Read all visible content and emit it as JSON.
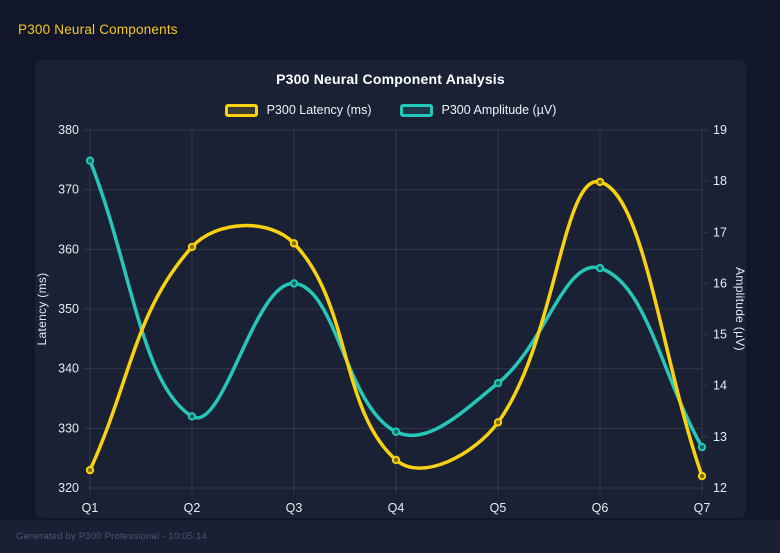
{
  "header": {
    "title": "P300 Neural Components",
    "color": "#f6c91c"
  },
  "card": {
    "background": "#1b2134"
  },
  "footer": {
    "text": "Generated by P300 Professional - 10:05:14"
  },
  "chart_data": {
    "type": "line",
    "title": "P300 Neural Component Analysis",
    "categories": [
      "Q1",
      "Q2",
      "Q3",
      "Q4",
      "Q5",
      "Q6",
      "Q7"
    ],
    "series": [
      {
        "name": "P300 Latency (ms)",
        "axis": "left",
        "color": "#f8d210",
        "values": [
          323,
          360.4,
          361,
          324.7,
          331,
          371.3,
          322
        ]
      },
      {
        "name": "P300 Amplitude (µV)",
        "axis": "right",
        "color": "#25c7b8",
        "values": [
          18.4,
          13.4,
          16.0,
          13.1,
          14.05,
          16.3,
          12.8
        ]
      }
    ],
    "left_axis": {
      "label": "Latency (ms)",
      "min": 320,
      "max": 380,
      "step": 10,
      "ticks": [
        320,
        330,
        340,
        350,
        360,
        370,
        380
      ]
    },
    "right_axis": {
      "label": "Amplitude (µV)",
      "min": 12,
      "max": 19,
      "step": 1,
      "ticks": [
        12,
        13,
        14,
        15,
        16,
        17,
        18,
        19
      ]
    },
    "grid": true,
    "legend_position": "top",
    "curve": "smooth-cubic tension 0.4",
    "grid_color": "rgba(255,255,255,0.10)"
  }
}
